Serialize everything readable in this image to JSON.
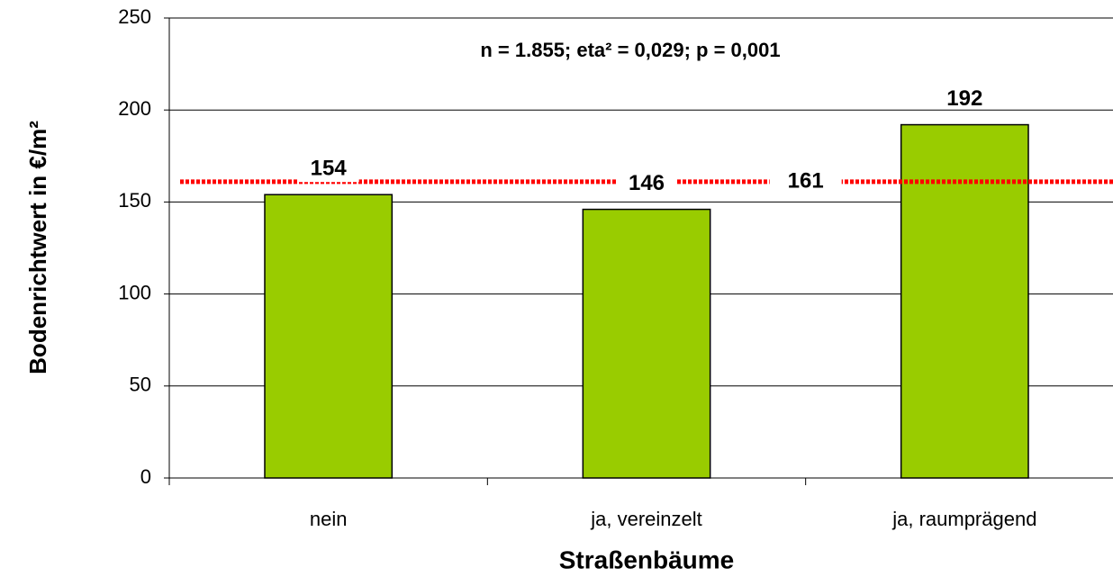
{
  "chart_data": {
    "type": "bar",
    "annotation": "n = 1.855;  eta² = 0,029; p = 0,001",
    "x_label": "Straßenbäume",
    "y_label": "Bodenrichtwert in €/m²",
    "categories": [
      "nein",
      "ja, vereinzelt",
      "ja, raumprägend"
    ],
    "values": [
      154,
      146,
      192
    ],
    "color": "#99cc00",
    "reference_line": {
      "value": 161,
      "color": "#ff0000"
    },
    "ylim": [
      0,
      250
    ],
    "yticks": [
      0,
      50,
      100,
      150,
      200,
      250
    ],
    "grid": true
  }
}
